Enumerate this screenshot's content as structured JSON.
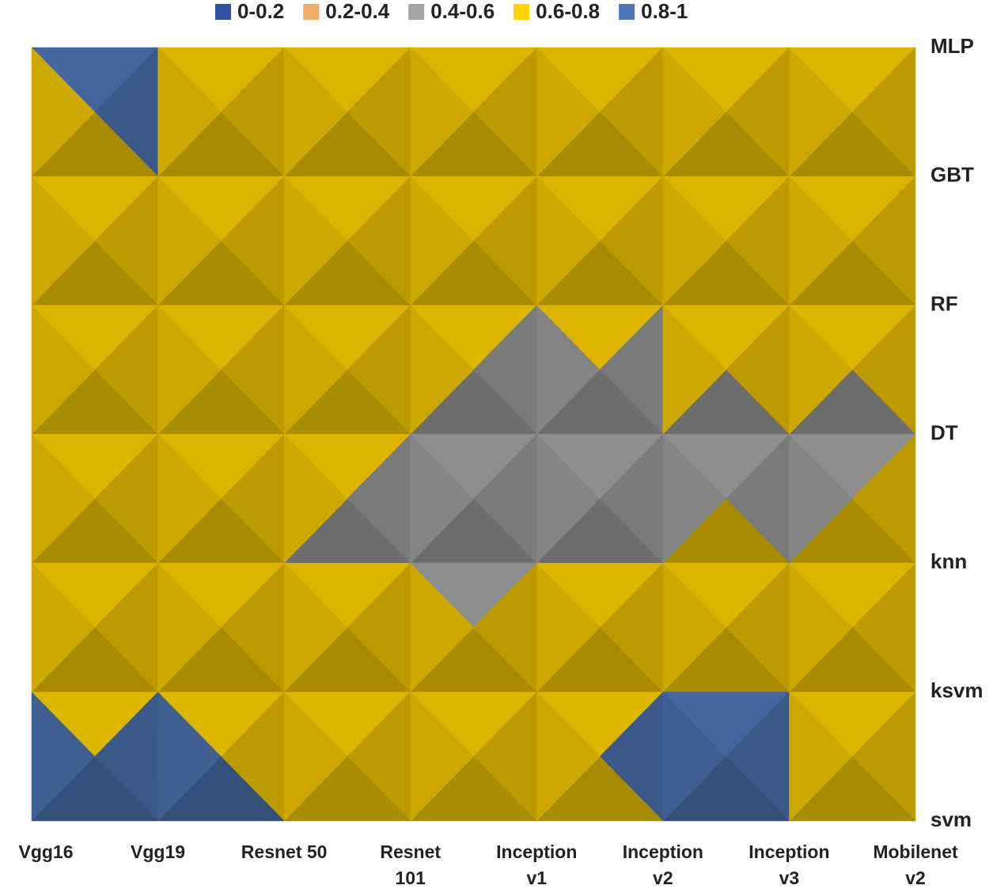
{
  "chart_data": {
    "type": "surface",
    "x": [
      "Vgg16",
      "Vgg19",
      "Resnet 50",
      "Resnet 101",
      "Inception v1",
      "Inception v2",
      "Inception v3",
      "Mobilenet v2"
    ],
    "y": [
      "MLP",
      "GBT",
      "RF",
      "DT",
      "knn",
      "ksvm",
      "svm"
    ],
    "zlim": [
      0,
      1
    ],
    "zticks": [
      0,
      0.2,
      0.4,
      0.6,
      0.8,
      1
    ],
    "bands": [
      {
        "name": "0-0.2",
        "color": "#2f53a0"
      },
      {
        "name": "0.2-0.4",
        "color": "#f1ac66"
      },
      {
        "name": "0.4-0.6",
        "color": "#a5a5a5"
      },
      {
        "name": "0.6-0.8",
        "color": "#ffd200"
      },
      {
        "name": "0.8-1",
        "color": "#4f77b8"
      }
    ],
    "values": [
      [
        0.85,
        0.85,
        0.75,
        0.7,
        0.7,
        0.82,
        0.72,
        0.85
      ],
      [
        0.7,
        0.78,
        0.58,
        0.7,
        0.7,
        0.7,
        0.45,
        0.7
      ],
      [
        0.7,
        0.7,
        0.78,
        0.7,
        0.7,
        0.7,
        0.75,
        0.7
      ],
      [
        0.7,
        0.7,
        0.75,
        0.6,
        0.45,
        0.5,
        0.45,
        0.6
      ],
      [
        0.7,
        0.7,
        0.7,
        0.45,
        0.55,
        0.68,
        0.7,
        0.7
      ],
      [
        0.75,
        0.78,
        0.75,
        0.75,
        0.72,
        0.88,
        0.75,
        0.72
      ],
      [
        0.85,
        0.85,
        0.78,
        0.7,
        0.7,
        0.85,
        0.85,
        0.7
      ]
    ]
  }
}
